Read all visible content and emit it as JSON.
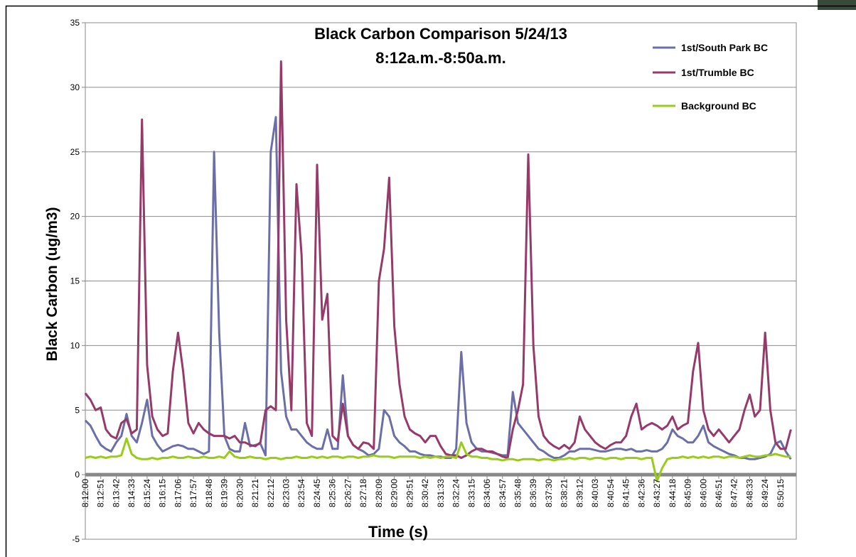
{
  "chart_data": {
    "type": "line",
    "title": "Black Carbon Comparison 5/24/13",
    "subtitle": "8:12a.m.-8:50a.m.",
    "x_label": "Time (s)",
    "y_label": "Black Carbon (ug/m3)",
    "categories": [
      "8:12:00",
      null,
      null,
      "8:12:51",
      null,
      null,
      "8:13:42",
      null,
      null,
      "8:14:33",
      null,
      null,
      "8:15:24",
      null,
      null,
      "8:16:15",
      null,
      null,
      "8:17:06",
      null,
      null,
      "8:17:57",
      null,
      null,
      "8:18:48",
      null,
      null,
      "8:19:39",
      null,
      null,
      "8:20:30",
      null,
      null,
      "8:21:21",
      null,
      null,
      "8:22:12",
      null,
      null,
      "8:23:03",
      null,
      null,
      "8:23:54",
      null,
      null,
      "8:24:45",
      null,
      null,
      "8:25:36",
      null,
      null,
      "8:26:27",
      null,
      null,
      "8:27:18",
      null,
      null,
      "8:28:09",
      null,
      null,
      "8:29:00",
      null,
      null,
      "8:29:51",
      null,
      null,
      "8:30:42",
      null,
      null,
      "8:31:33",
      null,
      null,
      "8:32:24",
      null,
      null,
      "8:33:15",
      null,
      null,
      "8:34:06",
      null,
      null,
      "8:34:57",
      null,
      null,
      "8:35:48",
      null,
      null,
      "8:36:39",
      null,
      null,
      "8:37:30",
      null,
      null,
      "8:38:21",
      null,
      null,
      "8:39:12",
      null,
      null,
      "8:40:03",
      null,
      null,
      "8:40:54",
      null,
      null,
      "8:41:45",
      null,
      null,
      "8:42:36",
      null,
      null,
      "8:43:27",
      null,
      null,
      "8:44:18",
      null,
      null,
      "8:45:09",
      null,
      null,
      "8:46:00",
      null,
      null,
      "8:46:51",
      null,
      null,
      "8:47:42",
      null,
      null,
      "8:48:33",
      null,
      null,
      "8:49:24",
      null,
      null,
      "8:50:15",
      null,
      null
    ],
    "series": [
      {
        "name": "1st/South Park BC",
        "color": "#6b6fa8",
        "values": [
          4.2,
          3.8,
          3,
          2.3,
          2,
          1.8,
          2.5,
          3,
          4.7,
          3,
          2.5,
          4,
          5.8,
          3,
          2.3,
          1.8,
          2,
          2.2,
          2.3,
          2.2,
          2,
          2,
          1.8,
          1.6,
          1.8,
          25,
          11,
          3,
          2,
          1.8,
          1.8,
          4,
          2.2,
          2.3,
          2.4,
          1.5,
          25,
          27.7,
          8,
          4.5,
          3.5,
          3.5,
          3,
          2.5,
          2.2,
          2,
          2,
          3.5,
          2,
          2,
          7.7,
          3,
          2.3,
          2,
          1.8,
          1.5,
          1.6,
          2,
          5,
          4.5,
          3,
          2.5,
          2.2,
          1.8,
          1.8,
          1.6,
          1.5,
          1.5,
          1.4,
          1.4,
          1.3,
          1.3,
          2,
          9.5,
          4,
          2.5,
          2,
          1.8,
          1.8,
          1.7,
          1.6,
          1.5,
          1.5,
          6.4,
          4,
          3.5,
          3,
          2.5,
          2,
          1.8,
          1.5,
          1.3,
          1.3,
          1.5,
          1.8,
          1.8,
          2,
          2,
          2,
          1.9,
          1.8,
          1.8,
          1.9,
          2,
          2,
          1.9,
          2,
          1.8,
          1.8,
          1.9,
          1.8,
          1.8,
          2,
          2.5,
          3.5,
          3,
          2.8,
          2.5,
          2.5,
          3,
          3.8,
          2.5,
          2.2,
          2,
          1.8,
          1.6,
          1.5,
          1.3,
          1.3,
          1.2,
          1.2,
          1.3,
          1.4,
          1.6,
          2.4,
          2.6,
          1.8,
          1.2
        ]
      },
      {
        "name": "1st/Trumble BC",
        "color": "#963a6a",
        "values": [
          6.3,
          5.8,
          5,
          5.2,
          3.5,
          3,
          2.8,
          4,
          4.3,
          3.2,
          3.5,
          27.5,
          8.5,
          4.5,
          3.5,
          3,
          3.2,
          8,
          11,
          8,
          4,
          3.2,
          4,
          3.5,
          3.2,
          3,
          3,
          3,
          2.8,
          3,
          2.5,
          2.5,
          2.3,
          2.2,
          2.5,
          5,
          5.3,
          5,
          32,
          12,
          5,
          22.5,
          17,
          4,
          3,
          24,
          12,
          14,
          3,
          2.6,
          5.5,
          3,
          2.3,
          2,
          2.5,
          2.4,
          2,
          15,
          17.5,
          23,
          11.5,
          7,
          4.5,
          3.5,
          3.2,
          3,
          2.5,
          3,
          3,
          2.2,
          1.6,
          1.5,
          1.5,
          1.3,
          1.5,
          1.8,
          2,
          2,
          1.8,
          1.8,
          1.6,
          1.4,
          1.3,
          3.5,
          5,
          7,
          24.8,
          10,
          4.5,
          3,
          2.5,
          2.2,
          2,
          2.3,
          2,
          2.5,
          4.5,
          3.5,
          3,
          2.5,
          2.2,
          2,
          2.3,
          2.5,
          2.5,
          3,
          4.5,
          5.5,
          3.5,
          3.8,
          4,
          3.8,
          3.5,
          3.8,
          4.5,
          3.5,
          3.8,
          4,
          8,
          10.2,
          5,
          3.5,
          3,
          3.5,
          3,
          2.5,
          3,
          3.5,
          5,
          6.2,
          4.5,
          5,
          11,
          5,
          2.5,
          2,
          2,
          3.5
        ]
      },
      {
        "name": "Background BC",
        "color": "#99cc1a",
        "values": [
          1.3,
          1.4,
          1.3,
          1.4,
          1.3,
          1.4,
          1.4,
          1.5,
          2.8,
          1.6,
          1.3,
          1.2,
          1.2,
          1.3,
          1.2,
          1.3,
          1.3,
          1.4,
          1.3,
          1.3,
          1.4,
          1.3,
          1.3,
          1.4,
          1.3,
          1.3,
          1.4,
          1.3,
          1.8,
          1.4,
          1.3,
          1.3,
          1.4,
          1.3,
          1.3,
          1.2,
          1.3,
          1.3,
          1.2,
          1.3,
          1.3,
          1.4,
          1.3,
          1.3,
          1.4,
          1.3,
          1.4,
          1.3,
          1.4,
          1.4,
          1.3,
          1.4,
          1.4,
          1.3,
          1.4,
          1.4,
          1.5,
          1.4,
          1.4,
          1.4,
          1.3,
          1.4,
          1.4,
          1.4,
          1.4,
          1.3,
          1.4,
          1.3,
          1.4,
          1.3,
          1.4,
          1.4,
          1.3,
          2.5,
          1.6,
          1.4,
          1.4,
          1.3,
          1.3,
          1.2,
          1.2,
          1.1,
          1.2,
          1.2,
          1.1,
          1.2,
          1.2,
          1.2,
          1.1,
          1.2,
          1.2,
          1.1,
          1.2,
          1.2,
          1.3,
          1.2,
          1.3,
          1.3,
          1.2,
          1.3,
          1.3,
          1.2,
          1.3,
          1.3,
          1.2,
          1.3,
          1.3,
          1.3,
          1.2,
          1.3,
          1.3,
          -0.5,
          0.5,
          1.2,
          1.3,
          1.3,
          1.4,
          1.3,
          1.4,
          1.3,
          1.4,
          1.3,
          1.4,
          1.4,
          1.3,
          1.4,
          1.4,
          1.3,
          1.4,
          1.5,
          1.4,
          1.4,
          1.5,
          1.5,
          1.6,
          1.5,
          1.4,
          1.4
        ]
      }
    ],
    "ylim": [
      -5,
      35
    ],
    "yticks": [
      -5,
      0,
      5,
      10,
      15,
      20,
      25,
      30,
      35
    ],
    "grid": true,
    "legend": "upper right"
  }
}
